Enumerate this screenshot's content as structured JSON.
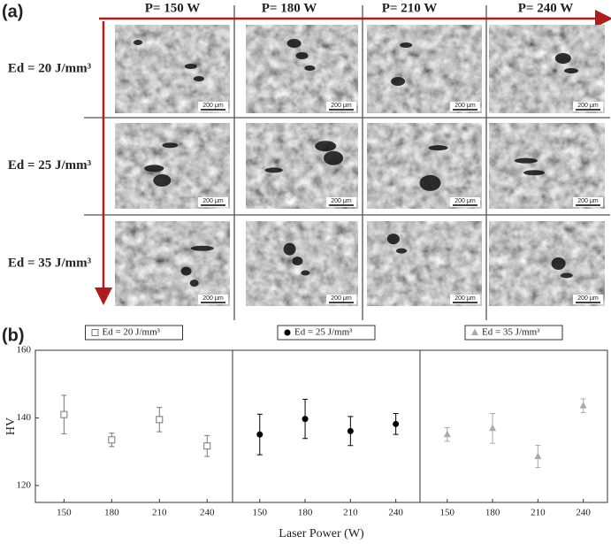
{
  "panel_a": {
    "label": "(a)",
    "columns": [
      "P= 150 W",
      "P= 180 W",
      "P= 210 W",
      "P= 240 W"
    ],
    "rows": [
      "Ed = 20 J/mm³",
      "Ed = 25 J/mm³",
      "Ed = 35 J/mm³"
    ],
    "scale_bar": "200 μm"
  },
  "panel_b": {
    "label": "(b)"
  },
  "chart_data": [
    {
      "type": "scatter",
      "x_label": "Laser Power (W)",
      "y_label": "HV",
      "x": [
        150,
        180,
        210,
        240
      ],
      "xlim": [
        132,
        256
      ],
      "xticks": [
        150,
        180,
        210,
        240
      ],
      "ylim": [
        115,
        160
      ],
      "yticks": [
        120,
        140,
        160
      ],
      "series": [
        {
          "name": "Ed = 20 J/mm³",
          "color": "#777777",
          "marker": "open-square",
          "values": [
            141.0,
            133.5,
            139.5,
            131.7
          ],
          "errors": [
            5.7,
            2.0,
            3.6,
            3.1
          ]
        }
      ]
    },
    {
      "type": "scatter",
      "x": [
        150,
        180,
        210,
        240
      ],
      "xlim": [
        132,
        256
      ],
      "xticks": [
        150,
        180,
        210,
        240
      ],
      "ylim": [
        115,
        160
      ],
      "series": [
        {
          "name": "Ed = 25 J/mm³",
          "color": "#000000",
          "marker": "filled-circle",
          "values": [
            135.1,
            139.7,
            136.1,
            138.2
          ],
          "errors": [
            6.0,
            5.8,
            4.3,
            3.1
          ]
        }
      ]
    },
    {
      "type": "scatter",
      "x": [
        150,
        180,
        210,
        240
      ],
      "xlim": [
        132,
        256
      ],
      "xticks": [
        150,
        180,
        210,
        240
      ],
      "ylim": [
        115,
        160
      ],
      "series": [
        {
          "name": "Ed = 35 J/mm³",
          "color": "#aaaaaa",
          "marker": "filled-triangle",
          "values": [
            135.1,
            136.9,
            128.6,
            143.6
          ],
          "errors": [
            2.0,
            4.4,
            3.3,
            2.0
          ]
        }
      ]
    }
  ]
}
